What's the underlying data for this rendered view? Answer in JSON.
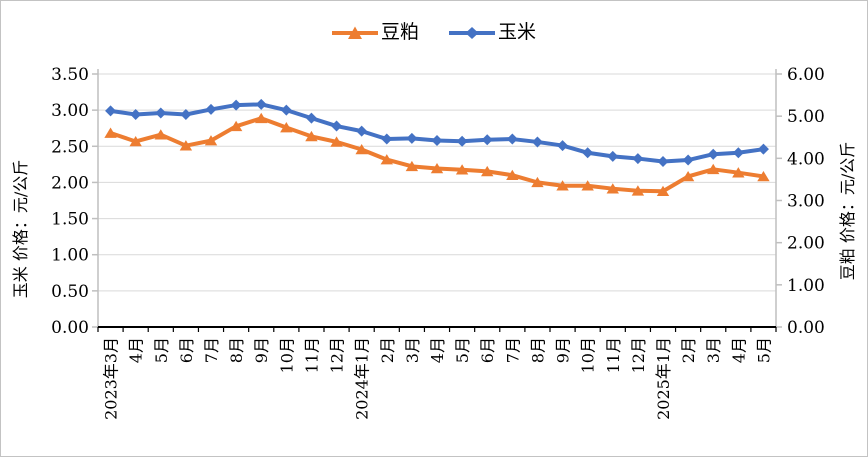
{
  "chart": {
    "legend": [
      {
        "label": "豆粕",
        "color": "#ED7D31",
        "marker": "triangle"
      },
      {
        "label": "玉米",
        "color": "#4472C4",
        "marker": "diamond"
      }
    ],
    "left_axis": {
      "title": "玉米 价格：元/公斤",
      "min": 0,
      "max": 3.5,
      "step": 0.5,
      "tick_labels": [
        "0.00",
        "0.50",
        "1.00",
        "1.50",
        "2.00",
        "2.50",
        "3.00",
        "3.50"
      ]
    },
    "right_axis": {
      "title": "豆粕 价格：元/公斤",
      "min": 0,
      "max": 6,
      "step": 1,
      "tick_labels": [
        "0.00",
        "1.00",
        "2.00",
        "3.00",
        "4.00",
        "5.00",
        "6.00"
      ]
    }
  },
  "chart_data": {
    "type": "line",
    "title": "",
    "categories": [
      "2023年3月",
      "4月",
      "5月",
      "6月",
      "7月",
      "8月",
      "9月",
      "10月",
      "11月",
      "12月",
      "2024年1月",
      "2月",
      "3月",
      "4月",
      "5月",
      "6月",
      "7月",
      "8月",
      "9月",
      "10月",
      "11月",
      "12月",
      "2025年1月",
      "2月",
      "3月",
      "4月",
      "5月"
    ],
    "series": [
      {
        "name": "豆粕",
        "axis": "right",
        "color": "#ED7D31",
        "marker": "triangle",
        "values": [
          4.6,
          4.4,
          4.56,
          4.3,
          4.42,
          4.76,
          4.95,
          4.73,
          4.52,
          4.39,
          4.21,
          3.97,
          3.81,
          3.76,
          3.73,
          3.69,
          3.6,
          3.43,
          3.35,
          3.35,
          3.28,
          3.23,
          3.22,
          3.57,
          3.74,
          3.66,
          3.57
        ]
      },
      {
        "name": "玉米",
        "axis": "left",
        "color": "#4472C4",
        "marker": "diamond",
        "values": [
          2.99,
          2.94,
          2.96,
          2.94,
          3.01,
          3.07,
          3.08,
          3.0,
          2.89,
          2.78,
          2.71,
          2.6,
          2.61,
          2.58,
          2.57,
          2.59,
          2.6,
          2.56,
          2.51,
          2.41,
          2.36,
          2.33,
          2.29,
          2.31,
          2.39,
          2.41,
          2.46
        ]
      }
    ],
    "left_ylabel": "玉米 价格：元/公斤",
    "right_ylabel": "豆粕 价格：元/公斤",
    "left_ylim": [
      0,
      3.5
    ],
    "right_ylim": [
      0,
      6
    ],
    "grid": true,
    "legend_position": "top"
  },
  "colors": {
    "soybean_meal": "#ED7D31",
    "corn": "#4472C4",
    "gridline": "#D9D9D9",
    "y_axis_line": "#BFBFBF",
    "x_axis_line": "#000000",
    "text": "#000000",
    "border": "#C3C3C3"
  }
}
